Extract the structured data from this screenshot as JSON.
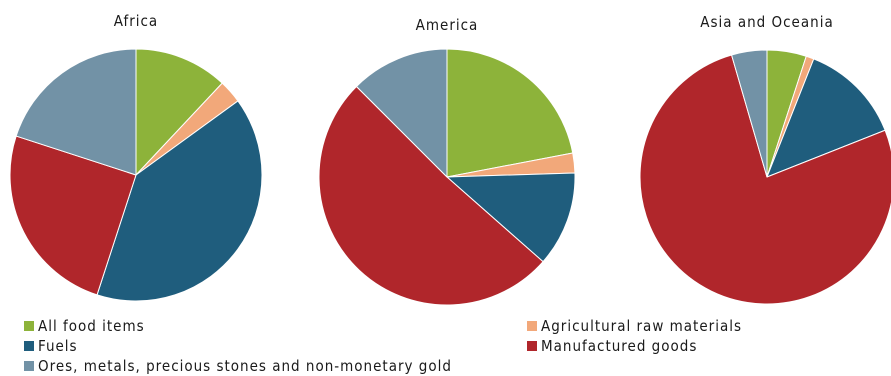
{
  "colors": {
    "all_food_items": "#8db33a",
    "agricultural_raw_materials": "#f2a87a",
    "fuels": "#1f5d7d",
    "manufactured_goods": "#b0262b",
    "ores_metals": "#7292a6"
  },
  "chart_data": [
    {
      "type": "pie",
      "title": "Africa",
      "categories": [
        "All food items",
        "Agricultural raw materials",
        "Fuels",
        "Manufactured goods",
        "Ores, metals, precious stones and non-monetary gold"
      ],
      "values": [
        12,
        3,
        40,
        25,
        20
      ],
      "unit": "%"
    },
    {
      "type": "pie",
      "title": "America",
      "categories": [
        "All food items",
        "Agricultural raw materials",
        "Fuels",
        "Manufactured goods",
        "Ores, metals, precious stones and non-monetary gold"
      ],
      "values": [
        22,
        2.5,
        12,
        51,
        12.5
      ],
      "unit": "%"
    },
    {
      "type": "pie",
      "title": "Asia and Oceania",
      "categories": [
        "All food items",
        "Agricultural raw materials",
        "Fuels",
        "Manufactured goods",
        "Ores, metals, precious stones and non-monetary gold"
      ],
      "values": [
        5,
        1,
        13,
        76.5,
        4.5
      ],
      "unit": "%"
    }
  ],
  "legend": [
    {
      "label": "All food items",
      "color_key": "all_food_items"
    },
    {
      "label": "Agricultural raw materials",
      "color_key": "agricultural_raw_materials"
    },
    {
      "label": "Fuels",
      "color_key": "fuels"
    },
    {
      "label": "Manufactured goods",
      "color_key": "manufactured_goods"
    },
    {
      "label": "Ores, metals, precious stones and non-monetary gold",
      "color_key": "ores_metals"
    }
  ]
}
